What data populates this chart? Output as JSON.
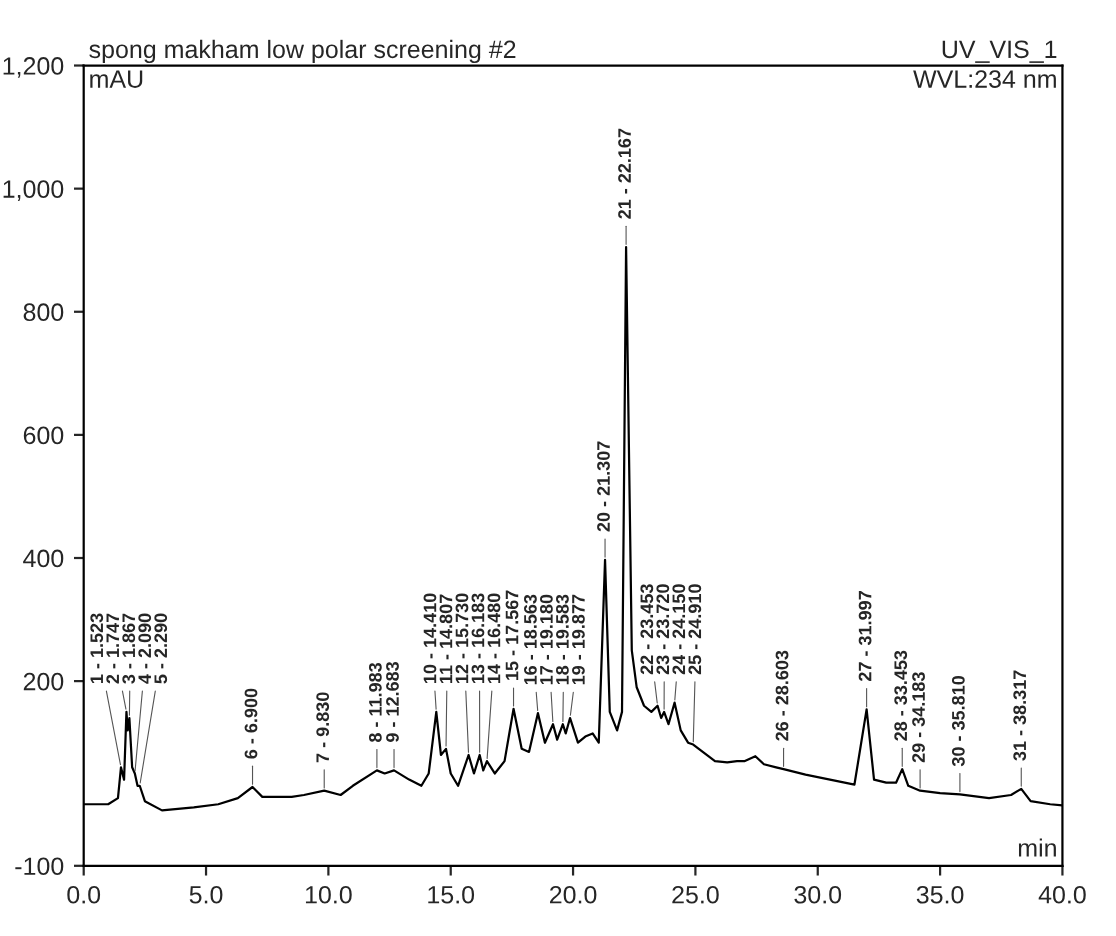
{
  "chart_data": {
    "type": "line",
    "title": "spong makham low polar screening #2",
    "ylabel": "mAU",
    "xlabel": "min",
    "annotations": [
      "UV_VIS_1",
      "WVL:234 nm",
      {
        "text": "1 - 1.523",
        "x": 1.523,
        "y": 60
      },
      {
        "text": "2 - 1.747",
        "x": 1.747,
        "y": 150
      },
      {
        "text": "3 - 1.867",
        "x": 1.867,
        "y": 140
      },
      {
        "text": "4 - 2.090",
        "x": 2.09,
        "y": 50
      },
      {
        "text": "5 - 2.290",
        "x": 2.29,
        "y": 30
      },
      {
        "text": "6 - 6.900",
        "x": 6.9,
        "y": 28
      },
      {
        "text": "7 - 9.830",
        "x": 9.83,
        "y": 22
      },
      {
        "text": "8 - 11.983",
        "x": 11.983,
        "y": 55
      },
      {
        "text": "9 - 12.683",
        "x": 12.683,
        "y": 55
      },
      {
        "text": "10 - 14.410",
        "x": 14.41,
        "y": 150
      },
      {
        "text": "11 - 14.807",
        "x": 14.807,
        "y": 90
      },
      {
        "text": "12 - 15.730",
        "x": 15.73,
        "y": 80
      },
      {
        "text": "13 - 16.183",
        "x": 16.183,
        "y": 80
      },
      {
        "text": "14 - 16.480",
        "x": 16.48,
        "y": 70
      },
      {
        "text": "15 - 17.567",
        "x": 17.567,
        "y": 155
      },
      {
        "text": "16 - 18.563",
        "x": 18.563,
        "y": 148
      },
      {
        "text": "17 - 19.180",
        "x": 19.18,
        "y": 130
      },
      {
        "text": "18 - 19.583",
        "x": 19.583,
        "y": 130
      },
      {
        "text": "19 - 19.877",
        "x": 19.877,
        "y": 140
      },
      {
        "text": "20 - 21.307",
        "x": 21.307,
        "y": 397
      },
      {
        "text": "21 - 22.167",
        "x": 22.167,
        "y": 905
      },
      {
        "text": "22 - 23.453",
        "x": 23.453,
        "y": 160
      },
      {
        "text": "23 - 23.720",
        "x": 23.72,
        "y": 150
      },
      {
        "text": "24 - 24.150",
        "x": 24.15,
        "y": 165
      },
      {
        "text": "25 - 24.910",
        "x": 24.91,
        "y": 97
      },
      {
        "text": "26 - 28.603",
        "x": 28.603,
        "y": 57
      },
      {
        "text": "27 - 31.997",
        "x": 31.997,
        "y": 154
      },
      {
        "text": "28 - 33.453",
        "x": 33.453,
        "y": 57
      },
      {
        "text": "29 - 34.183",
        "x": 34.183,
        "y": 22
      },
      {
        "text": "30 - 35.810",
        "x": 35.81,
        "y": 16
      },
      {
        "text": "31 - 38.317",
        "x": 38.317,
        "y": 25
      }
    ],
    "series": [
      {
        "color": "#000000",
        "x": [
          0,
          1.0,
          1.4,
          1.523,
          1.65,
          1.747,
          1.8,
          1.867,
          1.98,
          2.09,
          2.2,
          2.29,
          2.5,
          3.2,
          4.5,
          5.5,
          6.3,
          6.9,
          7.3,
          8.5,
          9.0,
          9.83,
          10.5,
          11.0,
          11.983,
          12.3,
          12.683,
          13.3,
          13.8,
          14.1,
          14.41,
          14.6,
          14.807,
          15.0,
          15.3,
          15.73,
          15.95,
          16.183,
          16.33,
          16.48,
          16.8,
          17.2,
          17.567,
          17.9,
          18.2,
          18.563,
          18.85,
          19.18,
          19.35,
          19.583,
          19.7,
          19.877,
          20.2,
          20.5,
          20.8,
          21.05,
          21.307,
          21.5,
          21.8,
          22.0,
          22.167,
          22.4,
          22.6,
          22.9,
          23.2,
          23.453,
          23.6,
          23.72,
          23.9,
          24.15,
          24.4,
          24.7,
          24.91,
          25.3,
          25.8,
          26.3,
          26.7,
          27.0,
          27.45,
          27.8,
          28.3,
          28.603,
          29.5,
          30.5,
          31.5,
          31.997,
          32.3,
          32.8,
          33.2,
          33.453,
          33.7,
          34.183,
          35.0,
          35.81,
          37.0,
          37.9,
          38.317,
          38.7,
          39.5,
          40
        ],
        "values": [
          0,
          0,
          10,
          60,
          40,
          150,
          120,
          140,
          60,
          50,
          30,
          30,
          5,
          -10,
          -5,
          0,
          10,
          28,
          12,
          12,
          15,
          22,
          15,
          30,
          55,
          50,
          55,
          40,
          30,
          50,
          150,
          80,
          90,
          50,
          30,
          80,
          50,
          80,
          55,
          70,
          50,
          70,
          155,
          90,
          85,
          148,
          100,
          130,
          105,
          130,
          115,
          140,
          100,
          110,
          115,
          100,
          397,
          150,
          120,
          150,
          905,
          250,
          190,
          160,
          150,
          160,
          140,
          150,
          130,
          165,
          120,
          100,
          97,
          85,
          70,
          68,
          70,
          70,
          78,
          65,
          60,
          57,
          48,
          40,
          32,
          154,
          40,
          35,
          35,
          57,
          30,
          22,
          18,
          16,
          10,
          15,
          25,
          5,
          0,
          -2
        ]
      }
    ],
    "xlim": [
      0,
      40
    ],
    "ylim": [
      -100,
      1200
    ],
    "xticks": [
      {
        "value": 0,
        "label": "0.0"
      },
      {
        "value": 5,
        "label": "5.0"
      },
      {
        "value": 10,
        "label": "10.0"
      },
      {
        "value": 15,
        "label": "15.0"
      },
      {
        "value": 20,
        "label": "20.0"
      },
      {
        "value": 25,
        "label": "25.0"
      },
      {
        "value": 30,
        "label": "30.0"
      },
      {
        "value": 35,
        "label": "35.0"
      },
      {
        "value": 40,
        "label": "40.0"
      }
    ],
    "yticks": [
      -100,
      200,
      400,
      600,
      800,
      {
        "value": 1000,
        "label": "1,000"
      },
      {
        "value": 1200,
        "label": "1,200"
      }
    ],
    "grid": false,
    "legend": false,
    "marker": "none",
    "line_style": "solid"
  }
}
